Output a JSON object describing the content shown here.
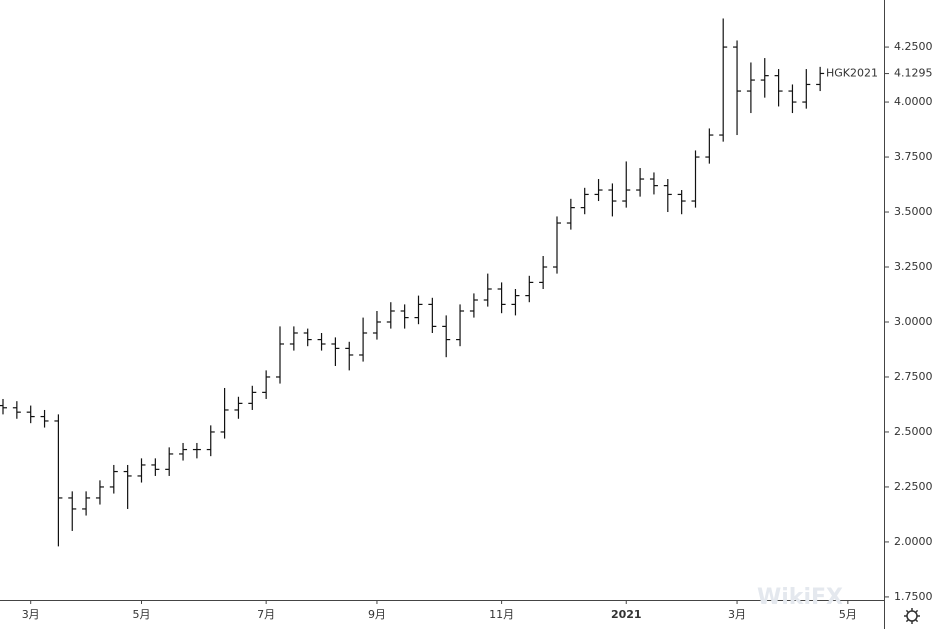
{
  "chart_data": {
    "type": "ohlc",
    "series_name": "HGK2021",
    "last_value": 4.1295,
    "watermark": "WikiFX",
    "color": "#111111",
    "categories": [
      null,
      null,
      "3月",
      null,
      null,
      null,
      null,
      null,
      null,
      null,
      "5月",
      null,
      null,
      null,
      null,
      null,
      null,
      null,
      null,
      "7月",
      null,
      null,
      null,
      null,
      null,
      null,
      null,
      "9月",
      null,
      null,
      null,
      null,
      null,
      null,
      null,
      null,
      "11月",
      null,
      null,
      null,
      null,
      null,
      null,
      null,
      null,
      "2021",
      null,
      null,
      null,
      null,
      null,
      null,
      null,
      "3月",
      null,
      null,
      null,
      null,
      null,
      null,
      null,
      "5月"
    ],
    "open": [
      2.62,
      2.61,
      2.59,
      2.57,
      2.55,
      2.2,
      2.15,
      2.2,
      2.25,
      2.32,
      2.3,
      2.35,
      2.33,
      2.4,
      2.42,
      2.42,
      2.5,
      2.6,
      2.63,
      2.68,
      2.75,
      2.9,
      2.95,
      2.92,
      2.9,
      2.88,
      2.85,
      2.95,
      3.0,
      3.05,
      3.02,
      3.08,
      2.98,
      2.92,
      3.05,
      3.1,
      3.15,
      3.08,
      3.12,
      3.18,
      3.25,
      3.45,
      3.52,
      3.58,
      3.6,
      3.55,
      3.6,
      3.65,
      3.62,
      3.58,
      3.55,
      3.75,
      3.85,
      4.25,
      4.05,
      4.1,
      4.12,
      4.05,
      4.0,
      4.08,
      null,
      null
    ],
    "high": [
      2.65,
      2.64,
      2.62,
      2.6,
      2.58,
      2.23,
      2.23,
      2.28,
      2.35,
      2.35,
      2.38,
      2.38,
      2.43,
      2.45,
      2.45,
      2.53,
      2.7,
      2.66,
      2.71,
      2.78,
      2.98,
      2.98,
      2.97,
      2.95,
      2.93,
      2.91,
      3.02,
      3.05,
      3.09,
      3.08,
      3.12,
      3.11,
      3.03,
      3.08,
      3.13,
      3.22,
      3.18,
      3.15,
      3.21,
      3.3,
      3.48,
      3.56,
      3.61,
      3.65,
      3.63,
      3.73,
      3.7,
      3.68,
      3.65,
      3.6,
      3.78,
      3.88,
      4.38,
      4.28,
      4.18,
      4.2,
      4.15,
      4.08,
      4.15,
      4.16,
      null,
      null
    ],
    "low": [
      2.58,
      2.56,
      2.54,
      2.52,
      1.98,
      2.05,
      2.12,
      2.17,
      2.22,
      2.15,
      2.27,
      2.3,
      2.3,
      2.37,
      2.38,
      2.39,
      2.47,
      2.56,
      2.6,
      2.65,
      2.72,
      2.87,
      2.89,
      2.87,
      2.8,
      2.78,
      2.82,
      2.92,
      2.97,
      2.97,
      2.99,
      2.95,
      2.84,
      2.89,
      3.02,
      3.07,
      3.04,
      3.03,
      3.09,
      3.15,
      3.22,
      3.42,
      3.49,
      3.55,
      3.48,
      3.52,
      3.57,
      3.58,
      3.5,
      3.49,
      3.52,
      3.72,
      3.82,
      3.85,
      3.95,
      4.02,
      3.98,
      3.95,
      3.97,
      4.05,
      null,
      null
    ],
    "close": [
      2.61,
      2.59,
      2.57,
      2.55,
      2.2,
      2.15,
      2.2,
      2.25,
      2.32,
      2.3,
      2.35,
      2.33,
      2.4,
      2.42,
      2.42,
      2.5,
      2.6,
      2.63,
      2.68,
      2.75,
      2.9,
      2.95,
      2.92,
      2.9,
      2.88,
      2.85,
      2.95,
      3.0,
      3.05,
      3.02,
      3.08,
      2.98,
      2.92,
      3.05,
      3.1,
      3.15,
      3.08,
      3.12,
      3.18,
      3.25,
      3.45,
      3.52,
      3.58,
      3.6,
      3.55,
      3.6,
      3.65,
      3.62,
      3.58,
      3.55,
      3.75,
      3.85,
      4.25,
      4.05,
      4.1,
      4.12,
      4.05,
      4.0,
      4.08,
      4.13,
      null,
      null
    ],
    "ylim": [
      1.736,
      4.464
    ],
    "yticks": [
      {
        "value": 1.75,
        "label": "1.7500"
      },
      {
        "value": 2.0,
        "label": "2.0000"
      },
      {
        "value": 2.25,
        "label": "2.2500"
      },
      {
        "value": 2.5,
        "label": "2.5000"
      },
      {
        "value": 2.75,
        "label": "2.7500"
      },
      {
        "value": 3.0,
        "label": "3.0000"
      },
      {
        "value": 3.25,
        "label": "3.2500"
      },
      {
        "value": 3.5,
        "label": "3.5000"
      },
      {
        "value": 3.75,
        "label": "3.7500"
      },
      {
        "value": 4.0,
        "label": "4.0000"
      },
      {
        "value": 4.25,
        "label": "4.2500"
      }
    ]
  }
}
